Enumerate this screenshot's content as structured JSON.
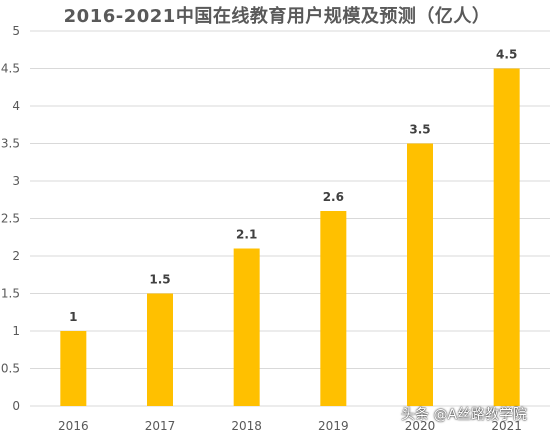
{
  "chart_data": {
    "type": "bar",
    "title": "2016-2021中国在线教育用户规模及预测（亿人）",
    "categories": [
      "2016",
      "2017",
      "2018",
      "2019",
      "2020",
      "2021"
    ],
    "values": [
      1,
      1.5,
      2.1,
      2.6,
      3.5,
      4.5
    ],
    "data_labels": [
      "1",
      "1.5",
      "2.1",
      "2.6",
      "3.5",
      "4.5"
    ],
    "yticks": [
      "0",
      "0.5",
      "1",
      "1.5",
      "2",
      "2.5",
      "3",
      "3.5",
      "4",
      "4.5",
      "5"
    ],
    "ylim": [
      0,
      5
    ],
    "grid": true,
    "xlabel": "",
    "ylabel": "",
    "bar_color": "#FFC000",
    "grid_color": "#D9D9D9",
    "tick_color": "#595959"
  },
  "watermark": "头条 @A丝路教学院"
}
